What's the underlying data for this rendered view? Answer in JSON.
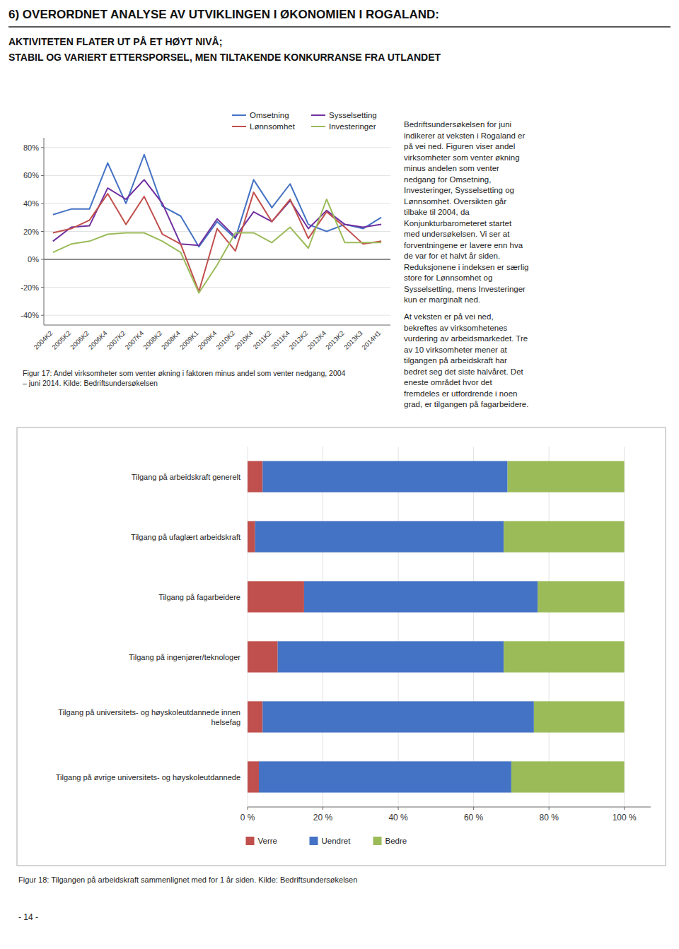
{
  "title": "6) OVERORDNET ANALYSE AV UTVIKLINGEN I ØKONOMIEN I ROGALAND:",
  "subtitle": [
    "AKTIVITETEN FLATER UT PÅ ET HØYT NIVÅ;",
    "STABIL OG VARIERT ETTERSPORSEL, MEN TILTAKENDE KONKURRANSE FRA UTLANDET"
  ],
  "annotations": [
    "Bedriftsundersøkelsen for juni\nindikerer at veksten i Rogaland er\npå vei ned. Figuren viser andel\nvirksomheter som venter økning\nminus andelen som venter\nnedgang for Omsetning,\nInvesteringer, Sysselsetting og\nLønnsomhet. Oversikten går\ntilbake til 2004, da\nKonjunkturbarometeret startet\nmed undersøkelsen. Vi ser at\nforventningene er lavere enn hva\nde var for et halvt år siden.\nReduksjonene i indeksen er særlig\nstore for Lønnsomhet og\nSysselsetting, mens Investeringer\nkun er marginalt ned.",
    "At veksten er på vei ned,\nbekreftes av virksomhetenes\nvurdering av arbeidsmarkedet. Tre\nav 10 virksomheter mener at\ntilgangen på arbeidskraft har\nbedret seg det siste halvåret. Det\neneste området hvor det\nfremdeles er utfordrende i noen\ngrad, er tilgangen på fagarbeidere.",
    "- 14 -"
  ],
  "chart_data": [
    {
      "type": "line",
      "caption": "Figur 17: Andel virksomheter som venter økning i faktoren minus andel som venter nedgang, 2004\n– juni 2014. Kilde: Bedriftsundersøkelsen",
      "categories": [
        "2004K2",
        "2005K2",
        "2006K2",
        "2006K4",
        "2007K2",
        "2007K4",
        "2008K2",
        "2008K4",
        "2009K1",
        "2009K4",
        "2010K2",
        "2010K4",
        "2011K2",
        "2011K4",
        "2012K2",
        "2012K4",
        "2013K2",
        "2013K3",
        "2014H1"
      ],
      "series": [
        {
          "name": "Omsetning",
          "color": "#4472C4",
          "values": [
            32,
            36,
            36,
            69,
            40,
            75,
            38,
            31,
            9,
            27,
            15,
            57,
            37,
            54,
            25,
            20,
            25,
            22,
            30
          ]
        },
        {
          "name": "Sysselsetting",
          "color": "#7030A0",
          "values": [
            13,
            23,
            24,
            51,
            43,
            57,
            40,
            11,
            10,
            29,
            16,
            34,
            27,
            42,
            22,
            35,
            25,
            23,
            25
          ]
        },
        {
          "name": "Lønnsomhet",
          "color": "#C0504D",
          "values": [
            19,
            22,
            28,
            47,
            25,
            45,
            18,
            11,
            -23,
            22,
            6,
            48,
            27,
            43,
            15,
            34,
            23,
            11,
            13
          ]
        },
        {
          "name": "Investeringer",
          "color": "#9BBB59",
          "values": [
            5,
            11,
            13,
            18,
            19,
            19,
            13,
            5,
            -24,
            -4,
            19,
            19,
            12,
            23,
            8,
            43,
            12,
            12,
            12
          ]
        }
      ],
      "ylim": [
        -47,
        87
      ],
      "yticks": [
        {
          "value": -40,
          "label": "-40%"
        },
        {
          "value": -20,
          "label": "-20%"
        },
        {
          "value": 0,
          "label": "0%"
        },
        {
          "value": 20,
          "label": "20%"
        },
        {
          "value": 40,
          "label": "40%"
        },
        {
          "value": 60,
          "label": "60%"
        },
        {
          "value": 80,
          "label": "80%"
        }
      ],
      "grid": true,
      "legend": "upper right"
    },
    {
      "type": "bar",
      "orientation": "horizontal",
      "stacked": true,
      "caption": "Figur 18: Tilgangen på arbeidskraft sammenlignet med for 1 år siden. Kilde: Bedriftsundersøkelsen",
      "categories": [
        "Tilgang på øvrige universitets- og høyskoleutdannede",
        "Tilgang på universitets- og høyskoleutdannede innen\nhelsefag",
        "Tilgang på ingenjører/teknologer",
        "Tilgang på fagarbeidere",
        "Tilgang på ufaglært arbeidskraft",
        "Tilgang på arbeidskraft generelt"
      ],
      "series": [
        {
          "name": "Verre",
          "color": "#C0504D",
          "values": [
            3,
            4,
            8,
            15,
            2,
            4
          ]
        },
        {
          "name": "Uendret",
          "color": "#4472C4",
          "values": [
            67,
            72,
            60,
            62,
            66,
            65
          ]
        },
        {
          "name": "Bedre",
          "color": "#9BBB59",
          "values": [
            30,
            24,
            32,
            23,
            32,
            31
          ]
        }
      ],
      "xlim": [
        0,
        107
      ],
      "xticks": [
        {
          "value": 0,
          "label": "0 %"
        },
        {
          "value": 20,
          "label": "20 %"
        },
        {
          "value": 40,
          "label": "40 %"
        },
        {
          "value": 60,
          "label": "60 %"
        },
        {
          "value": 80,
          "label": "80 %"
        },
        {
          "value": 100,
          "label": "100 %"
        }
      ],
      "grid": true,
      "legend": "lower center"
    }
  ]
}
